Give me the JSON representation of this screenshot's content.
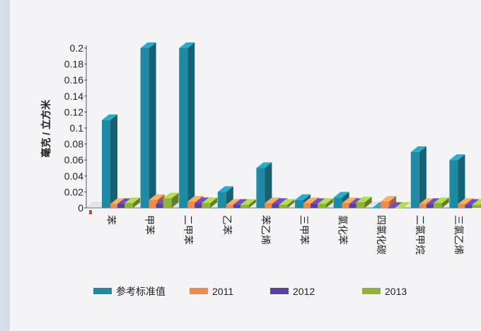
{
  "chart_data": {
    "type": "bar",
    "title": "",
    "xlabel": "",
    "ylabel": "毫克 / 立方米",
    "ylim": [
      0,
      0.2
    ],
    "yticks": [
      "0",
      "0.02",
      "0.04",
      "0.06",
      "0.08",
      "0.1",
      "0.12",
      "0.14",
      "0.16",
      "0.18",
      "0.2"
    ],
    "categories": [
      "苯",
      "甲苯",
      "二甲苯",
      "乙苯",
      "苯乙烯",
      "三甲苯",
      "氯化苯",
      "四氯化碳",
      "二氯甲烷",
      "三氯乙烯"
    ],
    "series": [
      {
        "name": "参考标准值",
        "color": "#1f8aa3",
        "values": [
          0.11,
          0.2,
          0.2,
          0.02,
          0.05,
          0.01,
          0.013,
          0.0,
          0.07,
          0.06
        ]
      },
      {
        "name": "2011",
        "color": "#f08a4b",
        "values": [
          0.005,
          0.01,
          0.008,
          0.004,
          0.006,
          0.006,
          0.006,
          0.008,
          0.005,
          0.005
        ]
      },
      {
        "name": "2012",
        "color": "#5a3fa0",
        "values": [
          0.005,
          0.005,
          0.006,
          0.004,
          0.005,
          0.005,
          0.005,
          0.0,
          0.005,
          0.004
        ]
      },
      {
        "name": "2013",
        "color": "#8fb23a",
        "values": [
          0.006,
          0.012,
          0.006,
          0.004,
          0.004,
          0.005,
          0.007,
          0.0,
          0.006,
          0.004
        ]
      }
    ],
    "legend_position": "bottom",
    "grid": false
  }
}
